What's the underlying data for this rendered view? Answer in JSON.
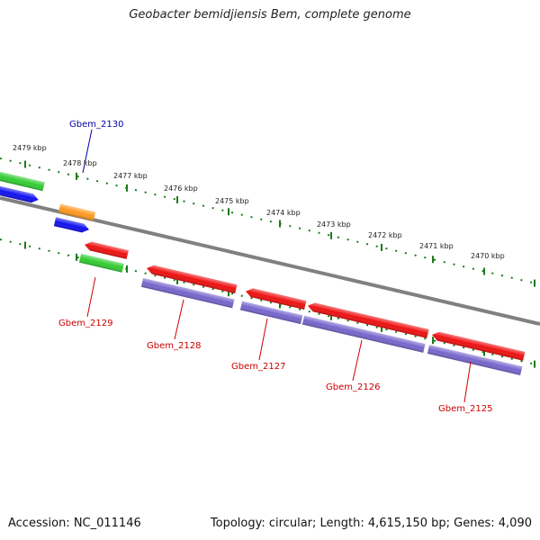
{
  "title": "Geobacter bemidjiensis Bem, complete genome",
  "footer": {
    "accession": "Accession: NC_011146",
    "summary": "Topology: circular; Length: 4,615,150 bp; Genes: 4,090"
  },
  "colors": {
    "backbone": "#808080",
    "tick": "#1a7a1a",
    "forward_label": "#0000aa",
    "reverse_label": "#cc0000",
    "red": "#ee1111",
    "blue": "#1111ee",
    "green": "#33cc33",
    "orange": "#ff9922",
    "purple": "#7766cc"
  },
  "kbp_labels": [
    "2479 kbp",
    "2478 kbp",
    "2477 kbp",
    "2476 kbp",
    "2475 kbp",
    "2474 kbp",
    "2473 kbp",
    "2472 kbp",
    "2471 kbp",
    "2470 kbp"
  ],
  "gene_labels": [
    {
      "text": "Gbem_2130",
      "strand": "forward"
    },
    {
      "text": "Gbem_2129",
      "strand": "reverse"
    },
    {
      "text": "Gbem_2128",
      "strand": "reverse"
    },
    {
      "text": "Gbem_2127",
      "strand": "reverse"
    },
    {
      "text": "Gbem_2126",
      "strand": "reverse"
    },
    {
      "text": "Gbem_2125",
      "strand": "reverse"
    }
  ]
}
